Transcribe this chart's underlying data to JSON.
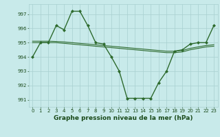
{
  "title": "Graphe pression niveau de la mer (hPa)",
  "x_ticks": [
    0,
    1,
    2,
    3,
    4,
    5,
    6,
    7,
    8,
    9,
    10,
    11,
    12,
    13,
    14,
    15,
    16,
    17,
    18,
    19,
    20,
    21,
    22,
    23
  ],
  "ylim": [
    990.5,
    997.7
  ],
  "yticks": [
    991,
    992,
    993,
    994,
    995,
    996,
    997
  ],
  "line1": {
    "x": [
      0,
      1,
      2,
      3,
      4,
      5,
      6,
      7,
      8,
      9,
      10,
      11,
      12,
      13,
      14,
      15,
      16,
      17,
      18,
      19,
      20,
      21,
      22,
      23
    ],
    "y": [
      994.0,
      995.0,
      995.0,
      996.2,
      995.9,
      997.2,
      997.2,
      996.2,
      995.0,
      994.9,
      994.0,
      993.0,
      991.1,
      991.1,
      991.1,
      991.1,
      992.2,
      993.0,
      994.4,
      994.5,
      994.9,
      995.0,
      995.0,
      996.2
    ],
    "color": "#2d6a2d",
    "linewidth": 1.0,
    "marker": "D",
    "markersize": 2.0
  },
  "line2": {
    "x": [
      0,
      1,
      2,
      3,
      4,
      5,
      6,
      7,
      8,
      9,
      10,
      11,
      12,
      13,
      14,
      15,
      16,
      17,
      18,
      19,
      20,
      21,
      22,
      23
    ],
    "y": [
      995.0,
      995.0,
      995.0,
      995.0,
      994.95,
      994.9,
      994.85,
      994.8,
      994.75,
      994.7,
      994.65,
      994.6,
      994.55,
      994.5,
      994.45,
      994.4,
      994.35,
      994.3,
      994.3,
      994.35,
      994.5,
      994.6,
      994.7,
      994.75
    ],
    "color": "#2d6a2d",
    "linewidth": 0.8
  },
  "line3": {
    "x": [
      0,
      1,
      2,
      3,
      4,
      5,
      6,
      7,
      8,
      9,
      10,
      11,
      12,
      13,
      14,
      15,
      16,
      17,
      18,
      19,
      20,
      21,
      22,
      23
    ],
    "y": [
      995.1,
      995.1,
      995.1,
      995.08,
      995.05,
      995.0,
      994.95,
      994.9,
      994.85,
      994.8,
      994.75,
      994.7,
      994.65,
      994.6,
      994.55,
      994.5,
      994.45,
      994.4,
      994.4,
      994.45,
      994.6,
      994.7,
      994.8,
      994.85
    ],
    "color": "#2d6a2d",
    "linewidth": 0.8
  },
  "background_color": "#c8eaea",
  "grid_color": "#a8d0d0",
  "text_color": "#1a4a1a",
  "title_fontsize": 6.5,
  "tick_fontsize": 5.0
}
